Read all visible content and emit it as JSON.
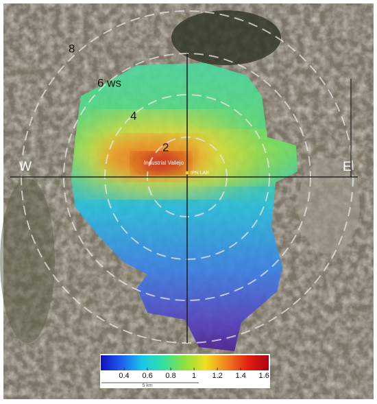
{
  "map": {
    "ring_labels": [
      "8",
      "6 ws",
      "4",
      "2"
    ],
    "directions": [
      "W",
      "E"
    ],
    "place_label": "Industrial Vallejo",
    "site_label": "IPN LAB",
    "scale_bar": "5 km"
  },
  "colorbar": {
    "lim": [
      0.2,
      1.64
    ],
    "ticks": [
      0.4,
      0.6,
      0.8,
      1,
      1.2,
      1.4,
      1.6
    ],
    "colors": [
      "#1010c0",
      "#1e5ff0",
      "#19c8e8",
      "#33e0a0",
      "#8ee040",
      "#f0e020",
      "#f08020",
      "#e02010",
      "#b00010"
    ]
  }
}
